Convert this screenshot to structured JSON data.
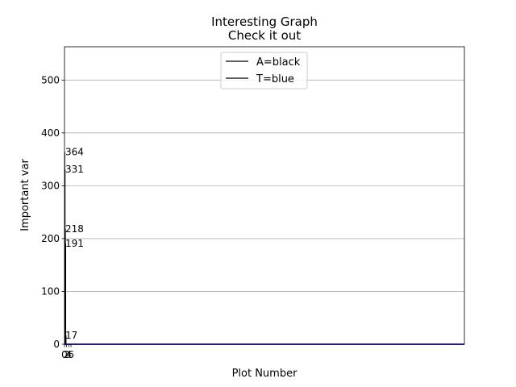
{
  "chart_data": {
    "type": "line",
    "title": "Interesting Graph",
    "subtitle": "Check it out",
    "xlabel": "Plot Number",
    "ylabel": "Important var",
    "xlim": [
      0,
      370
    ],
    "ylim": [
      0,
      563
    ],
    "y_ticks": [
      0,
      100,
      200,
      300,
      400,
      500
    ],
    "x_ticks": [
      0,
      2,
      4,
      6
    ],
    "x_tick_labels": [
      "0",
      "2",
      "4",
      "6"
    ],
    "grid": "y",
    "legend_placement": "upper center",
    "series": [
      {
        "name": "A=black",
        "color": "#000000",
        "x": [
          0,
          370
        ],
        "y": [
          0,
          0
        ]
      },
      {
        "name": "T=blue",
        "color": "#0000ff",
        "x": [
          0,
          370
        ],
        "y": [
          0,
          0
        ]
      }
    ],
    "bars": [
      {
        "x": 0.3,
        "value": 364,
        "color": "#000000"
      },
      {
        "x": 0.6,
        "value": 331,
        "color": "#000000"
      },
      {
        "x": 0.9,
        "value": 218,
        "color": "#000000"
      },
      {
        "x": 1.2,
        "value": 191,
        "color": "#000000"
      },
      {
        "x": 1.5,
        "value": 17,
        "color": "#000000"
      }
    ],
    "annotations": [
      {
        "text": "364",
        "x": 0,
        "y": 364
      },
      {
        "text": "331",
        "x": 0,
        "y": 331
      },
      {
        "text": "218",
        "x": 0,
        "y": 218
      },
      {
        "text": "191",
        "x": 0,
        "y": 191
      },
      {
        "text": "17",
        "x": 0,
        "y": 17
      }
    ]
  }
}
